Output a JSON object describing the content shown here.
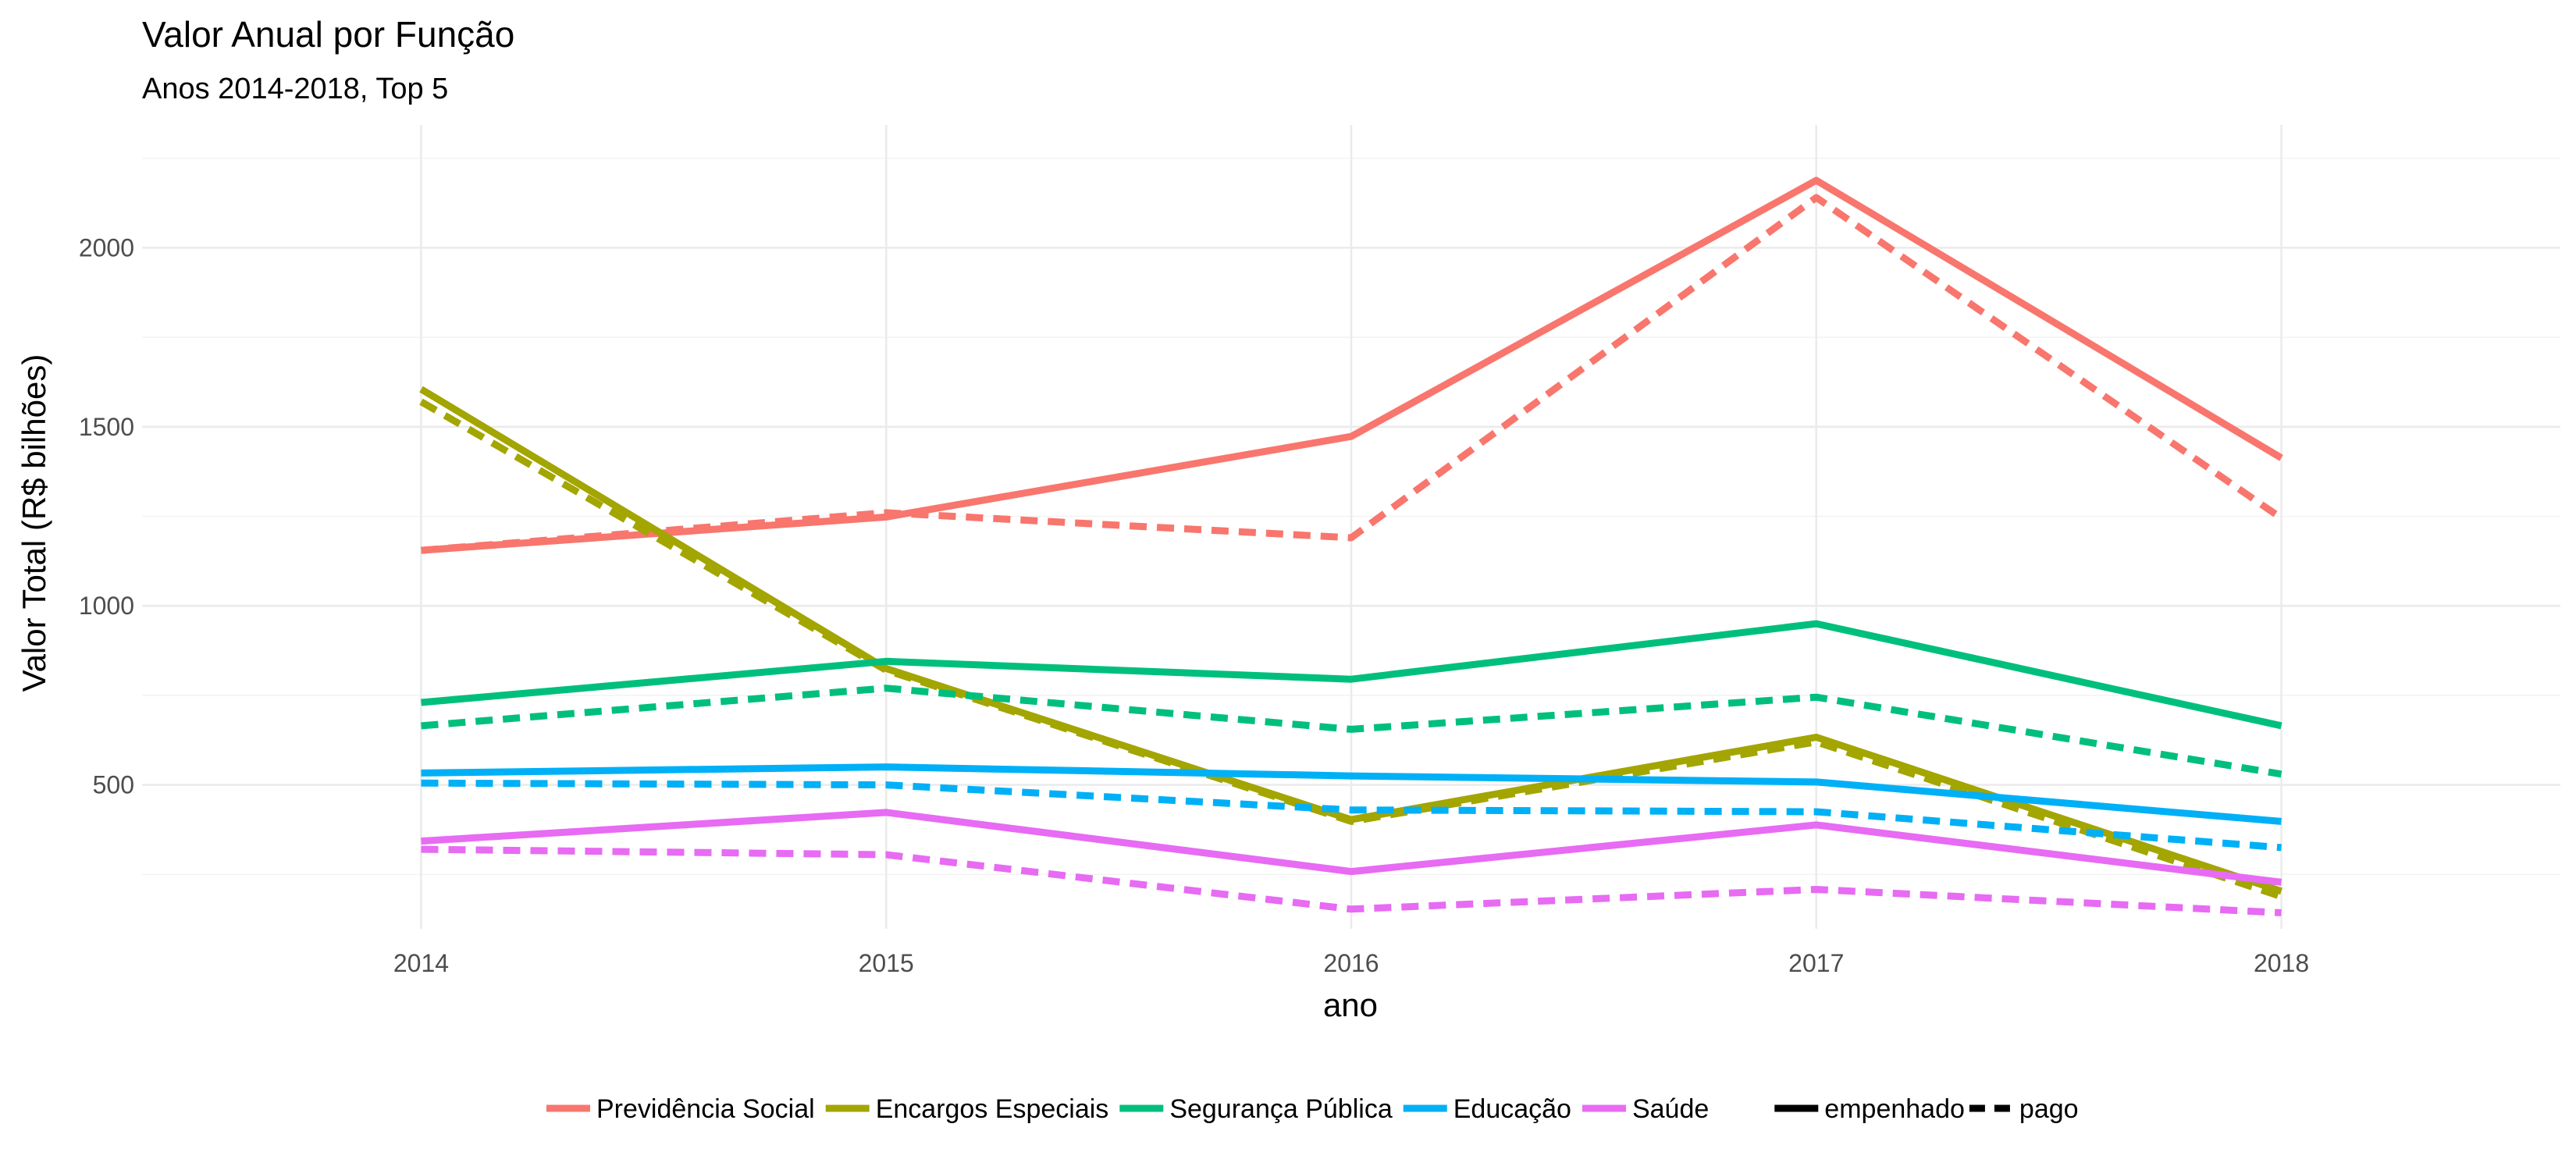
{
  "chart_data": {
    "type": "line",
    "title": "Valor Anual por Função",
    "subtitle": "Anos 2014-2018, Top 5",
    "xlabel": "ano",
    "ylabel": "Valor Total (R$ bilhões)",
    "x": [
      2014,
      2015,
      2016,
      2017,
      2018
    ],
    "x_ticks": [
      "2014",
      "2015",
      "2016",
      "2017",
      "2018"
    ],
    "xlim": [
      2013.4,
      2018.6
    ],
    "y_ticks": [
      500,
      1000,
      1500,
      2000
    ],
    "y_tick_labels": [
      "500",
      "1000",
      "1500",
      "2000"
    ],
    "ylim": [
      98,
      2343
    ],
    "grid": true,
    "legend_position": "bottom",
    "series": [
      {
        "name": "Previdência Social",
        "color": "#F8766D",
        "empenhado": [
          1155,
          1248,
          1473,
          2188,
          1413
        ],
        "pago": [
          1155,
          1260,
          1190,
          2140,
          1245
        ]
      },
      {
        "name": "Encargos Especiais",
        "color": "#A3A500",
        "empenhado": [
          1605,
          825,
          403,
          633,
          203
        ],
        "pago": [
          1570,
          820,
          398,
          620,
          188
        ]
      },
      {
        "name": "Segurança Pública",
        "color": "#00BF7D",
        "empenhado": [
          730,
          845,
          795,
          950,
          665
        ],
        "pago": [
          665,
          770,
          655,
          745,
          530
        ]
      },
      {
        "name": "Educação",
        "color": "#00B0F6",
        "empenhado": [
          533,
          550,
          525,
          508,
          398
        ],
        "pago": [
          505,
          500,
          430,
          425,
          325
        ]
      },
      {
        "name": "Saúde",
        "color": "#E76BF3",
        "empenhado": [
          343,
          423,
          258,
          388,
          228
        ],
        "pago": [
          320,
          305,
          153,
          208,
          143
        ]
      }
    ],
    "linetype_legend": [
      {
        "label": "empenhado",
        "style": "solid"
      },
      {
        "label": "pago",
        "style": "dashed"
      }
    ]
  }
}
